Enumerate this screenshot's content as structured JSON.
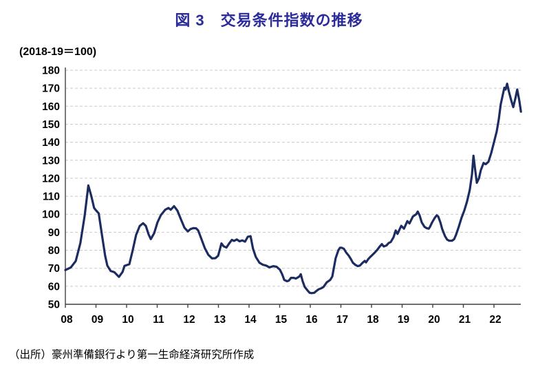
{
  "header": {
    "title": "図 3　交易条件指数の推移"
  },
  "chart_data": {
    "type": "line",
    "title": "図 3　交易条件指数の推移",
    "unit_label": "(2018-19＝100)",
    "source": "（出所）豪州準備銀行より第一生命経済研究所作成",
    "ylim": [
      50,
      180
    ],
    "y_tick_step": 10,
    "y_tick_labels": [
      "180",
      "170",
      "160",
      "150",
      "140",
      "130",
      "120",
      "110",
      "100",
      "90",
      "80",
      "70",
      "60",
      "50"
    ],
    "x_tick_labels": [
      "08",
      "09",
      "10",
      "11",
      "12",
      "13",
      "14",
      "15",
      "16",
      "17",
      "18",
      "19",
      "20",
      "21",
      "22"
    ],
    "x_tick_start_year": 2008,
    "grid": true,
    "legend_position": "none",
    "colors": {
      "line": "#1c2c60",
      "title": "#2b2b9c",
      "grid": "#c9c9c9",
      "axis": "#404040",
      "text": "#000000"
    },
    "series": [
      {
        "name": "交易条件指数",
        "points": [
          [
            2008.0,
            69
          ],
          [
            2008.18,
            70.5
          ],
          [
            2008.34,
            74
          ],
          [
            2008.49,
            84
          ],
          [
            2008.63,
            99
          ],
          [
            2008.75,
            116
          ],
          [
            2008.85,
            110
          ],
          [
            2008.94,
            103.5
          ],
          [
            2009.01,
            102
          ],
          [
            2009.09,
            100.5
          ],
          [
            2009.19,
            89
          ],
          [
            2009.3,
            77
          ],
          [
            2009.37,
            71.5
          ],
          [
            2009.48,
            68.5
          ],
          [
            2009.6,
            67.8
          ],
          [
            2009.66,
            66.8
          ],
          [
            2009.75,
            65.2
          ],
          [
            2009.87,
            68
          ],
          [
            2009.93,
            71.3
          ],
          [
            2010.09,
            72.3
          ],
          [
            2010.2,
            80
          ],
          [
            2010.31,
            88.5
          ],
          [
            2010.43,
            93.5
          ],
          [
            2010.54,
            95
          ],
          [
            2010.63,
            93.5
          ],
          [
            2010.72,
            88.8
          ],
          [
            2010.79,
            86.2
          ],
          [
            2010.9,
            89.5
          ],
          [
            2011.01,
            95.5
          ],
          [
            2011.12,
            99.5
          ],
          [
            2011.26,
            102.5
          ],
          [
            2011.37,
            103.5
          ],
          [
            2011.44,
            102.5
          ],
          [
            2011.55,
            104.5
          ],
          [
            2011.66,
            102
          ],
          [
            2011.78,
            97
          ],
          [
            2011.89,
            92.5
          ],
          [
            2012.0,
            90.5
          ],
          [
            2012.09,
            91.8
          ],
          [
            2012.18,
            92.3
          ],
          [
            2012.27,
            92.2
          ],
          [
            2012.34,
            91
          ],
          [
            2012.45,
            86
          ],
          [
            2012.56,
            81
          ],
          [
            2012.67,
            77.5
          ],
          [
            2012.79,
            75.5
          ],
          [
            2012.9,
            75.6
          ],
          [
            2012.99,
            77
          ],
          [
            2013.1,
            83.8
          ],
          [
            2013.17,
            82.2
          ],
          [
            2013.26,
            81.5
          ],
          [
            2013.35,
            83.8
          ],
          [
            2013.44,
            85.8
          ],
          [
            2013.51,
            85.2
          ],
          [
            2013.6,
            86
          ],
          [
            2013.69,
            85
          ],
          [
            2013.78,
            85.5
          ],
          [
            2013.87,
            84.8
          ],
          [
            2013.96,
            87.5
          ],
          [
            2014.05,
            87.8
          ],
          [
            2014.13,
            80.8
          ],
          [
            2014.22,
            76.3
          ],
          [
            2014.34,
            73.1
          ],
          [
            2014.45,
            72
          ],
          [
            2014.56,
            71.5
          ],
          [
            2014.67,
            70.5
          ],
          [
            2014.79,
            71.2
          ],
          [
            2014.9,
            70.8
          ],
          [
            2015.01,
            69.2
          ],
          [
            2015.08,
            66.7
          ],
          [
            2015.15,
            63.5
          ],
          [
            2015.24,
            62.8
          ],
          [
            2015.3,
            63.1
          ],
          [
            2015.37,
            64.7
          ],
          [
            2015.46,
            64.7
          ],
          [
            2015.53,
            64.3
          ],
          [
            2015.64,
            65.4
          ],
          [
            2015.69,
            66.7
          ],
          [
            2015.75,
            62.8
          ],
          [
            2015.82,
            59.6
          ],
          [
            2015.91,
            57.7
          ],
          [
            2015.98,
            56.4
          ],
          [
            2016.04,
            56.2
          ],
          [
            2016.13,
            56.4
          ],
          [
            2016.2,
            57.4
          ],
          [
            2016.27,
            58.3
          ],
          [
            2016.36,
            58.9
          ],
          [
            2016.43,
            59.6
          ],
          [
            2016.54,
            62.2
          ],
          [
            2016.65,
            63.5
          ],
          [
            2016.72,
            65.4
          ],
          [
            2016.76,
            69.2
          ],
          [
            2016.83,
            75.6
          ],
          [
            2016.92,
            80.1
          ],
          [
            2016.97,
            81.4
          ],
          [
            2017.03,
            81.4
          ],
          [
            2017.1,
            80.8
          ],
          [
            2017.17,
            78.8
          ],
          [
            2017.26,
            76.9
          ],
          [
            2017.33,
            75
          ],
          [
            2017.39,
            73.1
          ],
          [
            2017.48,
            71.8
          ],
          [
            2017.55,
            71.2
          ],
          [
            2017.62,
            71.5
          ],
          [
            2017.71,
            73.1
          ],
          [
            2017.78,
            74.1
          ],
          [
            2017.82,
            73.3
          ],
          [
            2017.89,
            75
          ],
          [
            2017.96,
            76.3
          ],
          [
            2018.04,
            77.6
          ],
          [
            2018.11,
            78.8
          ],
          [
            2018.18,
            80.1
          ],
          [
            2018.27,
            82.1
          ],
          [
            2018.34,
            83.4
          ],
          [
            2018.4,
            82.1
          ],
          [
            2018.49,
            82.7
          ],
          [
            2018.56,
            84
          ],
          [
            2018.63,
            84.6
          ],
          [
            2018.72,
            87.2
          ],
          [
            2018.79,
            91
          ],
          [
            2018.85,
            89.1
          ],
          [
            2018.97,
            93.6
          ],
          [
            2019.06,
            92
          ],
          [
            2019.17,
            96.2
          ],
          [
            2019.24,
            94.9
          ],
          [
            2019.35,
            98.7
          ],
          [
            2019.46,
            100
          ],
          [
            2019.51,
            101.5
          ],
          [
            2019.57,
            99.4
          ],
          [
            2019.64,
            95.5
          ],
          [
            2019.73,
            93
          ],
          [
            2019.8,
            92.3
          ],
          [
            2019.87,
            92
          ],
          [
            2019.91,
            93
          ],
          [
            2019.98,
            95.5
          ],
          [
            2020.07,
            98.1
          ],
          [
            2020.13,
            99.4
          ],
          [
            2020.18,
            98.7
          ],
          [
            2020.25,
            95.5
          ],
          [
            2020.31,
            91.7
          ],
          [
            2020.4,
            87.9
          ],
          [
            2020.47,
            85.9
          ],
          [
            2020.54,
            85.3
          ],
          [
            2020.63,
            85.3
          ],
          [
            2020.7,
            86.2
          ],
          [
            2020.76,
            88.5
          ],
          [
            2020.85,
            93
          ],
          [
            2020.94,
            98
          ],
          [
            2021.03,
            102
          ],
          [
            2021.12,
            107
          ],
          [
            2021.21,
            113.5
          ],
          [
            2021.28,
            122
          ],
          [
            2021.33,
            132.5
          ],
          [
            2021.39,
            124
          ],
          [
            2021.44,
            117.5
          ],
          [
            2021.51,
            120
          ],
          [
            2021.57,
            124.5
          ],
          [
            2021.66,
            128.5
          ],
          [
            2021.73,
            127.8
          ],
          [
            2021.82,
            129.2
          ],
          [
            2021.91,
            134
          ],
          [
            2022.0,
            140
          ],
          [
            2022.09,
            146
          ],
          [
            2022.16,
            153
          ],
          [
            2022.22,
            161
          ],
          [
            2022.29,
            166.5
          ],
          [
            2022.34,
            170.3
          ],
          [
            2022.38,
            169.3
          ],
          [
            2022.43,
            172.5
          ],
          [
            2022.49,
            168
          ],
          [
            2022.56,
            163.5
          ],
          [
            2022.63,
            159.5
          ],
          [
            2022.7,
            164.5
          ],
          [
            2022.76,
            169.3
          ],
          [
            2022.83,
            163
          ],
          [
            2022.88,
            157
          ]
        ]
      }
    ]
  }
}
